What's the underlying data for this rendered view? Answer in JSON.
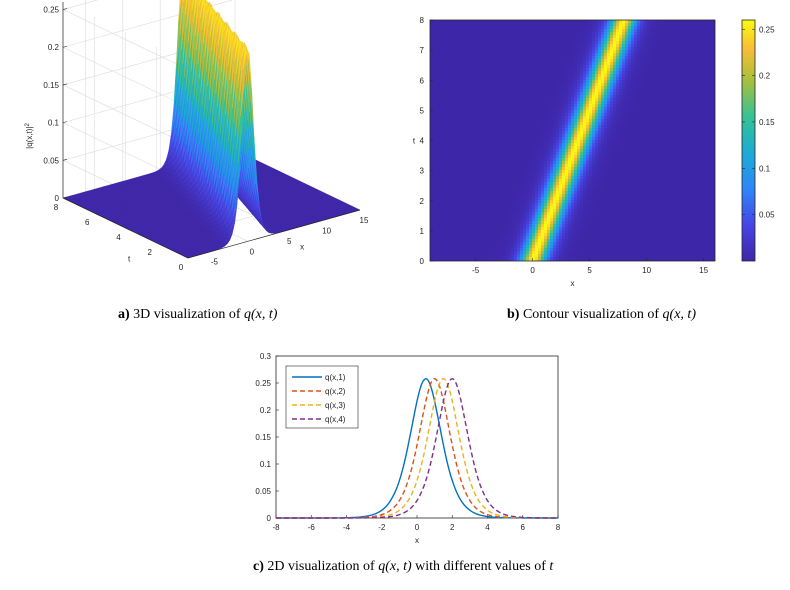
{
  "chart_data": [
    {
      "type": "surface",
      "zlabel": "|q(x,t)|",
      "zlabel_sup": "2",
      "xlabel": "x",
      "ylabel": "t",
      "z_ticks": [
        "0",
        "0.05",
        "0.1",
        "0.15",
        "0.2",
        "0.25"
      ],
      "x_ticks": [
        "-5",
        "0",
        "5",
        "10",
        "15"
      ],
      "t_ticks": [
        "0",
        "2",
        "4",
        "6",
        "8"
      ],
      "x_range": [
        -8,
        15
      ],
      "t_range": [
        0,
        8
      ],
      "z_range": [
        0,
        0.26
      ],
      "peak": 0.258,
      "colormap": "parula"
    },
    {
      "type": "heatmap",
      "xlabel": "x",
      "ylabel": "t",
      "x_ticks": [
        "-5",
        "0",
        "5",
        "10",
        "15"
      ],
      "y_ticks": [
        "0",
        "1",
        "2",
        "3",
        "4",
        "5",
        "6",
        "7",
        "8"
      ],
      "colorbar_ticks": [
        "0.05",
        "0.1",
        "0.15",
        "0.2",
        "0.25"
      ],
      "x_range": [
        -9,
        16
      ],
      "y_range": [
        0,
        8
      ],
      "colormap": "parula"
    },
    {
      "type": "line",
      "xlabel": "x",
      "x_ticks": [
        "-8",
        "-6",
        "-4",
        "-2",
        "0",
        "2",
        "4",
        "6",
        "8"
      ],
      "y_ticks": [
        "0",
        "0.05",
        "0.1",
        "0.15",
        "0.2",
        "0.25",
        "0.3"
      ],
      "xlim": [
        -8,
        8
      ],
      "ylim": [
        0,
        0.3
      ],
      "series": [
        {
          "name": "q(x,1)",
          "center": 0.5,
          "color": "#0072BD",
          "style": "solid"
        },
        {
          "name": "q(x,2)",
          "center": 1.0,
          "color": "#D95319",
          "style": "dashed"
        },
        {
          "name": "q(x,3)",
          "center": 1.5,
          "color": "#EDB120",
          "style": "dashed"
        },
        {
          "name": "q(x,4)",
          "center": 2.0,
          "color": "#7E2F8E",
          "style": "dashed"
        }
      ],
      "peak": 0.258,
      "legend": "top-left"
    }
  ],
  "captions": {
    "a": {
      "letter": "a)",
      "text": "3D visualization of "
    },
    "b": {
      "letter": "b)",
      "text": "Contour visualization of "
    },
    "c": {
      "letter": "c)",
      "text": "2D visualization of ",
      "tail": " with different values of "
    },
    "q": "q",
    "args": "(x, t)",
    "t": "t"
  }
}
